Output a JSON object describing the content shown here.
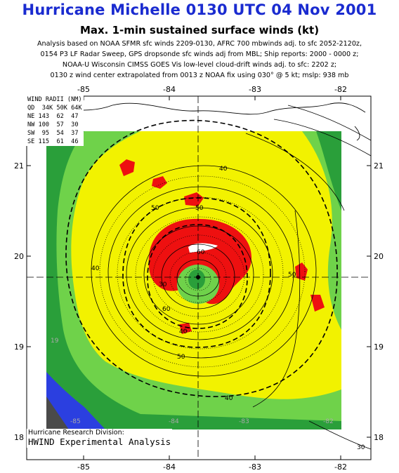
{
  "header": {
    "title": "Hurricane Michelle 0130 UTC 04 Nov 2001",
    "subtitle": "Max. 1-min sustained surface winds (kt)",
    "analysis_lines": [
      "Analysis based on NOAA SFMR sfc winds 2209-0130, AFRC 700 mbwinds adj. to sfc 2052-2120z,",
      "0154 P3 LF Radar Sweep, GPS dropsonde sfc winds adj from MBL; Ship reports: 2000 - 0000 z;",
      "NOAA-U Wisconsin CIMSS GOES Vis low-level cloud-drift winds adj. to sfc: 2202 z;",
      "0130 z wind center extrapolated from 0013 z NOAA fix using 030° @ 5 kt; mslp: 938 mb"
    ]
  },
  "axes": {
    "longitude_ticks": [
      "-85",
      "-84",
      "-83",
      "-82"
    ],
    "latitude_ticks": [
      "21",
      "20",
      "19",
      "18"
    ],
    "storm_center": {
      "lon": -83.78,
      "lat": 19.75
    }
  },
  "wind_radii": {
    "title": "WIND RADII (NM)",
    "header": "QD  34K 50K 64K",
    "rows": [
      {
        "quadrant": "NE",
        "r34": "143",
        "r50": "62",
        "r64": "47"
      },
      {
        "quadrant": "NW",
        "r34": "100",
        "r50": "57",
        "r64": "30"
      },
      {
        "quadrant": "SW",
        "r34": "95",
        "r50": "54",
        "r64": "37"
      },
      {
        "quadrant": "SE",
        "r34": "115",
        "r50": "61",
        "r64": "46"
      }
    ]
  },
  "contour_labels": [
    "40",
    "50",
    "50",
    "60",
    "30",
    "50",
    "40",
    "60",
    "40",
    "50",
    "40",
    "30"
  ],
  "inner_labels": [
    "-85",
    "-84",
    "-83",
    "-82",
    "19"
  ],
  "footer": {
    "line1": "Hurricane Research Division:",
    "line2": "HWIND Experimental Analysis"
  },
  "colors": {
    "title": "#1a2bd0",
    "wind_lt34": "#2a9f3a",
    "wind_34_50": "#6fd24a",
    "wind_50_64": "#f2f200",
    "wind_64_100": "#ee1010",
    "wind_gt100": "#ffffff",
    "shelf_blue": "#2b3fe0",
    "shelf_gray": "#4a4a4a"
  }
}
